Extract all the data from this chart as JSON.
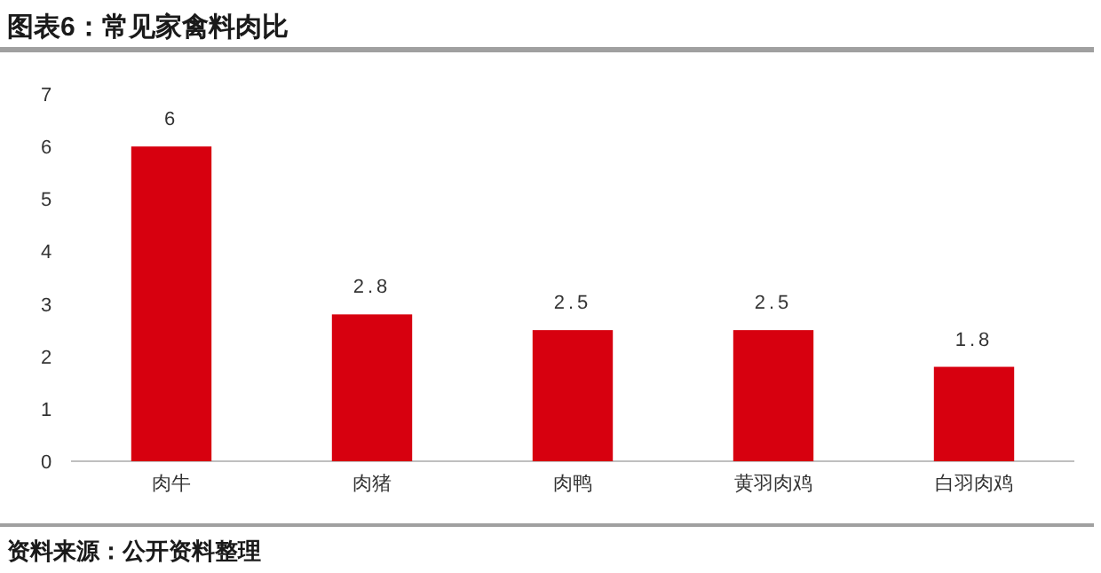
{
  "chart_data": {
    "type": "bar",
    "title": "图表6：常见家禽料肉比",
    "categories": [
      "肉牛",
      "肉猪",
      "肉鸭",
      "黄羽肉鸡",
      "白羽肉鸡"
    ],
    "values": [
      6,
      2.8,
      2.5,
      2.5,
      1.8
    ],
    "color": "#d7000f",
    "ylim": [
      0,
      7
    ],
    "yticks": [
      0,
      1,
      2,
      3,
      4,
      5,
      6,
      7
    ],
    "data_labels": true,
    "annotations": [
      "资料来源：公开资料整理"
    ]
  }
}
